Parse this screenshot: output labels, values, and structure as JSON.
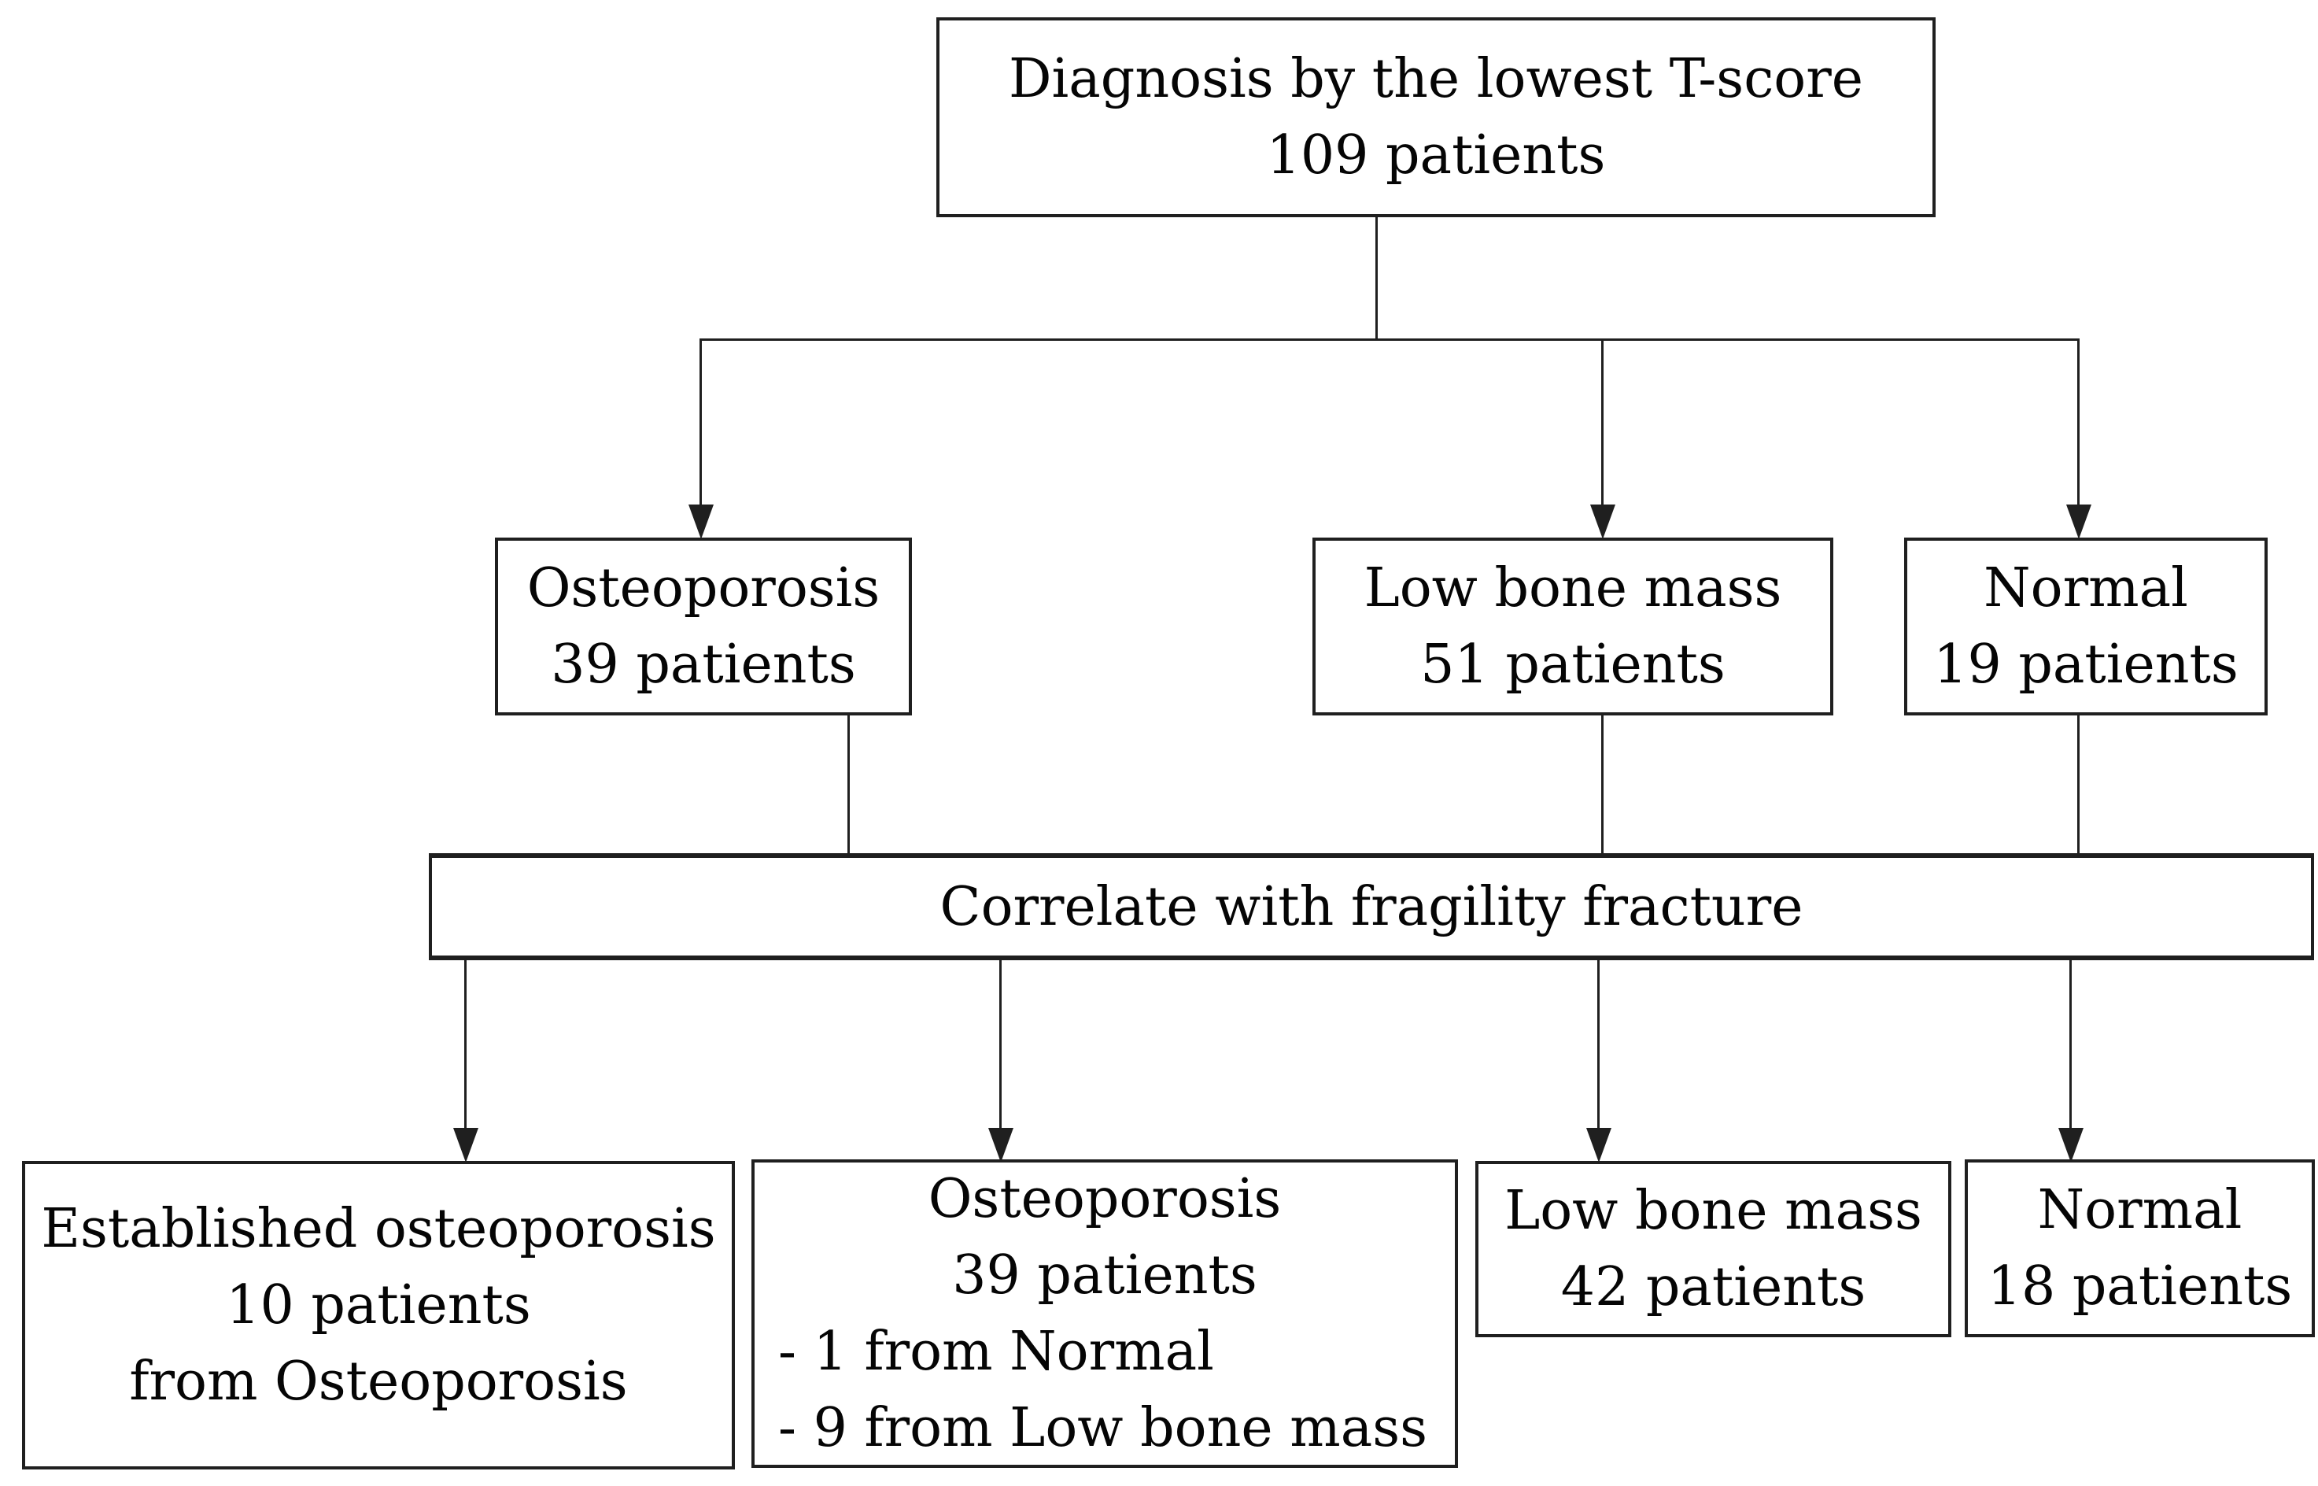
{
  "figure": {
    "background_color": "#ffffff",
    "ink_color": "#1f1f1f",
    "type": "patient-flow-diagram"
  },
  "nodes": {
    "root": {
      "line1": "Diagnosis by the lowest T-score",
      "line2": "109 patients"
    },
    "osteoporosis": {
      "line1": "Osteoporosis",
      "line2": "39 patients"
    },
    "low_bone_mass": {
      "line1": "Low bone mass",
      "line2": "51 patients"
    },
    "normal": {
      "line1": "Normal",
      "line2": "19 patients"
    },
    "correlate": {
      "label": "Correlate with fragility fracture"
    },
    "established_osteoporosis": {
      "line1": "Established osteoporosis",
      "line2": "10 patients",
      "line3": "from Osteoporosis"
    },
    "osteoporosis_after": {
      "line1": "Osteoporosis",
      "line2": "39 patients",
      "line3": "- 1 from Normal",
      "line4": "- 9 from Low bone mass"
    },
    "low_bone_mass_after": {
      "line1": "Low bone mass",
      "line2": "42 patients"
    },
    "normal_after": {
      "line1": "Normal",
      "line2": "18 patients"
    }
  }
}
